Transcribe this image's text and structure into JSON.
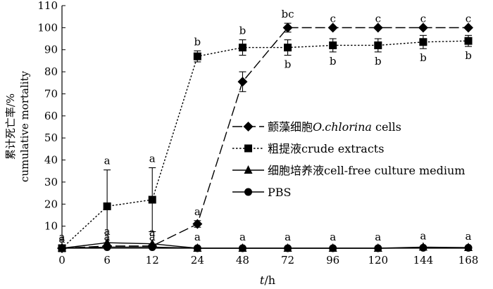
{
  "chart_data": {
    "type": "line",
    "title": "",
    "xlabel_italic": "t",
    "xlabel_unit": "/h",
    "ylabel_cn": "累计死亡率/%",
    "ylabel_en": "cumulative mortality",
    "categories": [
      "0",
      "6",
      "12",
      "24",
      "48",
      "72",
      "96",
      "120",
      "144",
      "168"
    ],
    "ylim": [
      0,
      110
    ],
    "yticks": [
      "10",
      "20",
      "30",
      "40",
      "50",
      "60",
      "70",
      "80",
      "90",
      "100",
      "110"
    ],
    "origin_label": "0",
    "grid": false,
    "legend_position": "center-right",
    "series": [
      {
        "name_cn": "颤藻细胞",
        "name_italic": "O.chlorina",
        "name_suffix": " cells",
        "marker": "diamond",
        "dash": "long-dash",
        "values": [
          0,
          1,
          1,
          11,
          75.5,
          100,
          100,
          100,
          100,
          100
        ],
        "errors": [
          0,
          0,
          0,
          1.5,
          4.5,
          2,
          0,
          0,
          0,
          0
        ],
        "labels": [
          "a",
          "a",
          "a",
          "a",
          "",
          "bc",
          "c",
          "c",
          "c",
          "c"
        ]
      },
      {
        "name_cn": "粗提液",
        "name_en": "crude extracts",
        "marker": "square",
        "dash": "dotted",
        "values": [
          0,
          19,
          22,
          87,
          91,
          91,
          92,
          92,
          93.5,
          94
        ],
        "errors": [
          0,
          16.5,
          14.5,
          2.5,
          3.5,
          3.5,
          3,
          3,
          3,
          2.5
        ],
        "labels_above": [
          "",
          "a",
          "a",
          "b",
          "b",
          "",
          "",
          "",
          "",
          ""
        ],
        "labels_below": [
          "",
          "",
          "",
          "",
          "",
          "b",
          "b",
          "b",
          "b",
          "b"
        ]
      },
      {
        "name_cn": "细胞培养液",
        "name_en": "cell-free culture medium",
        "marker": "triangle",
        "dash": "solid",
        "values": [
          0,
          2.5,
          2,
          0,
          0,
          0,
          0,
          0,
          0.5,
          0.3
        ],
        "errors": [
          0,
          0,
          0,
          0,
          0,
          0,
          0,
          0,
          0,
          0
        ],
        "labels": [
          "a",
          "a",
          "a",
          "a",
          "a",
          "a",
          "a",
          "a",
          "a",
          "a"
        ]
      },
      {
        "name_en": "PBS",
        "marker": "circle",
        "dash": "solid",
        "values": [
          0,
          0.5,
          0.5,
          0,
          0,
          0,
          0,
          0,
          0.2,
          0.2
        ],
        "errors": [
          0,
          0,
          0,
          0,
          0,
          0,
          0,
          0,
          0,
          0
        ]
      }
    ]
  }
}
